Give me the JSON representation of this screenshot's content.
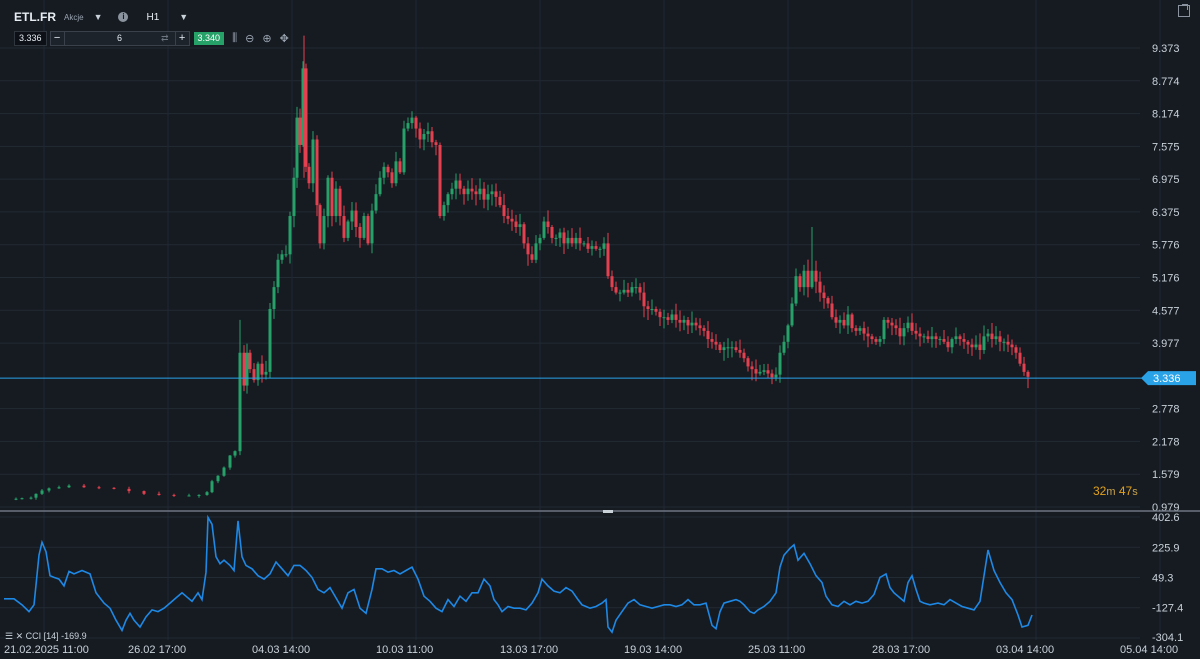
{
  "header": {
    "symbol": "ETL.FR",
    "instrument_type": "Akcje",
    "timeframe": "H1",
    "info_icon": "info-icon",
    "dropdown_icon": "chevron-down-icon"
  },
  "trade_bar": {
    "bid": "3.336",
    "minus": "−",
    "volume": "6",
    "plus": "+",
    "ask": "3.340"
  },
  "tools": [
    "candle-type-icon",
    "zoom-out-icon",
    "zoom-in-icon",
    "move-icon"
  ],
  "current_price": "3.336",
  "candle_timer": {
    "m": "32",
    "m_unit": "m",
    "s": "47",
    "s_unit": "s"
  },
  "indicator_label": "CCI [14] -169.9",
  "colors": {
    "up": "#26a269",
    "down": "#e5404f",
    "price_line": "#2aa2e8",
    "cci": "#1e88e5"
  },
  "chart_data": {
    "type": "candlestick",
    "y_ticks": [
      "9.373",
      "8.774",
      "8.174",
      "7.575",
      "6.975",
      "6.375",
      "5.776",
      "5.176",
      "4.577",
      "3.977",
      "2.778",
      "2.178",
      "1.579",
      "0.979"
    ],
    "y_range": [
      0.979,
      9.373
    ],
    "x_ticks": [
      "21.02.2025 11:00",
      "26.02 17:00",
      "04.03 14:00",
      "10.03 11:00",
      "13.03 17:00",
      "19.03 14:00",
      "25.03 11:00",
      "28.03 17:00",
      "03.04 14:00",
      "05.04 14:00"
    ],
    "close_path": [
      [
        0,
        1.13
      ],
      [
        12,
        1.13
      ],
      [
        18,
        1.14
      ],
      [
        27,
        1.15
      ],
      [
        32,
        1.22
      ],
      [
        38,
        1.28
      ],
      [
        45,
        1.32
      ],
      [
        55,
        1.34
      ],
      [
        65,
        1.37
      ],
      [
        80,
        1.34
      ],
      [
        95,
        1.33
      ],
      [
        110,
        1.31
      ],
      [
        125,
        1.27
      ],
      [
        140,
        1.22
      ],
      [
        155,
        1.2
      ],
      [
        170,
        1.19
      ],
      [
        185,
        1.19
      ],
      [
        195,
        1.2
      ],
      [
        203,
        1.25
      ],
      [
        208,
        1.45
      ],
      [
        214,
        1.55
      ],
      [
        220,
        1.7
      ],
      [
        226,
        1.92
      ],
      [
        231,
        2.0
      ],
      [
        236,
        3.8
      ],
      [
        240,
        3.2
      ],
      [
        243,
        3.8
      ],
      [
        246,
        3.5
      ],
      [
        250,
        3.3
      ],
      [
        254,
        3.6
      ],
      [
        258,
        3.4
      ],
      [
        262,
        3.45
      ],
      [
        266,
        4.6
      ],
      [
        270,
        5.0
      ],
      [
        274,
        5.5
      ],
      [
        278,
        5.6
      ],
      [
        282,
        5.6
      ],
      [
        286,
        6.3
      ],
      [
        290,
        7.0
      ],
      [
        293,
        8.1
      ],
      [
        296,
        7.6
      ],
      [
        299,
        9.0
      ],
      [
        302,
        7.2
      ],
      [
        305,
        6.9
      ],
      [
        309,
        7.7
      ],
      [
        313,
        6.5
      ],
      [
        316,
        5.8
      ],
      [
        320,
        6.3
      ],
      [
        324,
        7.0
      ],
      [
        328,
        6.3
      ],
      [
        332,
        6.8
      ],
      [
        336,
        6.3
      ],
      [
        340,
        5.9
      ],
      [
        344,
        6.2
      ],
      [
        348,
        6.4
      ],
      [
        352,
        6.1
      ],
      [
        356,
        5.9
      ],
      [
        360,
        6.3
      ],
      [
        364,
        5.8
      ],
      [
        368,
        6.4
      ],
      [
        372,
        6.7
      ],
      [
        376,
        7.0
      ],
      [
        380,
        7.2
      ],
      [
        384,
        7.1
      ],
      [
        388,
        6.9
      ],
      [
        392,
        7.3
      ],
      [
        396,
        7.1
      ],
      [
        400,
        7.9
      ],
      [
        404,
        8.0
      ],
      [
        408,
        8.1
      ],
      [
        412,
        7.9
      ],
      [
        416,
        7.7
      ],
      [
        420,
        7.8
      ],
      [
        424,
        7.85
      ],
      [
        428,
        7.65
      ],
      [
        432,
        7.6
      ],
      [
        436,
        6.3
      ],
      [
        440,
        6.5
      ],
      [
        444,
        6.7
      ],
      [
        448,
        6.8
      ],
      [
        452,
        6.95
      ],
      [
        456,
        6.8
      ],
      [
        460,
        6.7
      ],
      [
        464,
        6.8
      ],
      [
        468,
        6.75
      ],
      [
        472,
        6.7
      ],
      [
        476,
        6.8
      ],
      [
        480,
        6.6
      ],
      [
        484,
        6.7
      ],
      [
        488,
        6.75
      ],
      [
        492,
        6.65
      ],
      [
        496,
        6.5
      ],
      [
        500,
        6.3
      ],
      [
        504,
        6.25
      ],
      [
        508,
        6.2
      ],
      [
        512,
        6.1
      ],
      [
        516,
        6.15
      ],
      [
        520,
        5.8
      ],
      [
        524,
        5.6
      ],
      [
        528,
        5.5
      ],
      [
        532,
        5.8
      ],
      [
        536,
        5.9
      ],
      [
        540,
        6.2
      ],
      [
        544,
        6.1
      ],
      [
        548,
        5.9
      ],
      [
        552,
        5.9
      ],
      [
        556,
        6.0
      ],
      [
        560,
        5.8
      ],
      [
        564,
        5.9
      ],
      [
        568,
        5.8
      ],
      [
        572,
        5.9
      ],
      [
        576,
        5.8
      ],
      [
        580,
        5.8
      ],
      [
        584,
        5.7
      ],
      [
        588,
        5.75
      ],
      [
        592,
        5.7
      ],
      [
        596,
        5.7
      ],
      [
        600,
        5.8
      ],
      [
        604,
        5.2
      ],
      [
        608,
        5.0
      ],
      [
        612,
        4.9
      ],
      [
        616,
        4.9
      ],
      [
        620,
        4.95
      ],
      [
        624,
        4.9
      ],
      [
        628,
        5.0
      ],
      [
        632,
        5.0
      ],
      [
        636,
        4.9
      ],
      [
        640,
        4.65
      ],
      [
        644,
        4.6
      ],
      [
        648,
        4.6
      ],
      [
        652,
        4.55
      ],
      [
        656,
        4.45
      ],
      [
        660,
        4.45
      ],
      [
        664,
        4.4
      ],
      [
        668,
        4.5
      ],
      [
        672,
        4.4
      ],
      [
        676,
        4.35
      ],
      [
        680,
        4.4
      ],
      [
        684,
        4.3
      ],
      [
        688,
        4.35
      ],
      [
        692,
        4.3
      ],
      [
        696,
        4.25
      ],
      [
        700,
        4.2
      ],
      [
        704,
        4.05
      ],
      [
        708,
        4.0
      ],
      [
        712,
        3.95
      ],
      [
        716,
        3.85
      ],
      [
        720,
        3.9
      ],
      [
        724,
        3.9
      ],
      [
        728,
        3.9
      ],
      [
        732,
        3.85
      ],
      [
        736,
        3.8
      ],
      [
        740,
        3.7
      ],
      [
        744,
        3.55
      ],
      [
        748,
        3.5
      ],
      [
        752,
        3.42
      ],
      [
        756,
        3.45
      ],
      [
        760,
        3.48
      ],
      [
        764,
        3.42
      ],
      [
        768,
        3.35
      ],
      [
        772,
        3.4
      ],
      [
        776,
        3.8
      ],
      [
        780,
        4.0
      ],
      [
        784,
        4.3
      ],
      [
        788,
        4.7
      ],
      [
        792,
        5.2
      ],
      [
        796,
        5.0
      ],
      [
        800,
        5.3
      ],
      [
        804,
        5.0
      ],
      [
        808,
        5.3
      ],
      [
        812,
        5.1
      ],
      [
        816,
        4.9
      ],
      [
        820,
        4.8
      ],
      [
        824,
        4.7
      ],
      [
        828,
        4.45
      ],
      [
        832,
        4.35
      ],
      [
        836,
        4.4
      ],
      [
        840,
        4.3
      ],
      [
        844,
        4.5
      ],
      [
        848,
        4.25
      ],
      [
        852,
        4.2
      ],
      [
        856,
        4.25
      ],
      [
        860,
        4.15
      ],
      [
        864,
        4.1
      ],
      [
        868,
        4.05
      ],
      [
        872,
        4.0
      ],
      [
        876,
        4.05
      ],
      [
        880,
        4.4
      ],
      [
        884,
        4.35
      ],
      [
        888,
        4.3
      ],
      [
        892,
        4.25
      ],
      [
        896,
        4.1
      ],
      [
        900,
        4.25
      ],
      [
        904,
        4.35
      ],
      [
        908,
        4.2
      ],
      [
        912,
        4.15
      ],
      [
        916,
        4.1
      ],
      [
        920,
        4.1
      ],
      [
        924,
        4.05
      ],
      [
        928,
        4.1
      ],
      [
        932,
        4.05
      ],
      [
        936,
        4.05
      ],
      [
        940,
        4.0
      ],
      [
        944,
        3.9
      ],
      [
        948,
        4.05
      ],
      [
        952,
        4.1
      ],
      [
        956,
        4.05
      ],
      [
        960,
        4.0
      ],
      [
        964,
        3.95
      ],
      [
        968,
        3.9
      ],
      [
        972,
        3.95
      ],
      [
        976,
        3.85
      ],
      [
        980,
        4.1
      ],
      [
        984,
        4.15
      ],
      [
        988,
        4.05
      ],
      [
        992,
        4.1
      ],
      [
        996,
        4.0
      ],
      [
        1000,
        4.0
      ],
      [
        1004,
        3.95
      ],
      [
        1008,
        3.9
      ],
      [
        1012,
        3.8
      ],
      [
        1016,
        3.6
      ],
      [
        1020,
        3.45
      ],
      [
        1024,
        3.36
      ]
    ],
    "cci_ticks": [
      "402.6",
      "225.9",
      "49.3",
      "-127.4",
      "-304.1"
    ],
    "cci_range": [
      -304.1,
      402.6
    ],
    "cci_path": [
      [
        0,
        -75
      ],
      [
        10,
        -75
      ],
      [
        18,
        -110
      ],
      [
        25,
        -150
      ],
      [
        30,
        -110
      ],
      [
        35,
        180
      ],
      [
        38,
        255
      ],
      [
        42,
        200
      ],
      [
        46,
        60
      ],
      [
        50,
        50
      ],
      [
        55,
        40
      ],
      [
        60,
        0
      ],
      [
        65,
        85
      ],
      [
        70,
        70
      ],
      [
        78,
        90
      ],
      [
        86,
        70
      ],
      [
        92,
        -40
      ],
      [
        100,
        -100
      ],
      [
        106,
        -130
      ],
      [
        112,
        -200
      ],
      [
        118,
        -260
      ],
      [
        122,
        -200
      ],
      [
        126,
        -160
      ],
      [
        130,
        -200
      ],
      [
        136,
        -240
      ],
      [
        142,
        -180
      ],
      [
        148,
        -140
      ],
      [
        154,
        -150
      ],
      [
        160,
        -130
      ],
      [
        166,
        -100
      ],
      [
        172,
        -70
      ],
      [
        178,
        -40
      ],
      [
        182,
        -60
      ],
      [
        188,
        -90
      ],
      [
        194,
        -40
      ],
      [
        198,
        -80
      ],
      [
        202,
        80
      ],
      [
        204,
        400
      ],
      [
        208,
        360
      ],
      [
        212,
        170
      ],
      [
        216,
        130
      ],
      [
        220,
        150
      ],
      [
        226,
        120
      ],
      [
        230,
        90
      ],
      [
        234,
        380
      ],
      [
        238,
        170
      ],
      [
        242,
        120
      ],
      [
        248,
        100
      ],
      [
        254,
        60
      ],
      [
        260,
        40
      ],
      [
        266,
        70
      ],
      [
        272,
        140
      ],
      [
        278,
        100
      ],
      [
        284,
        60
      ],
      [
        290,
        120
      ],
      [
        296,
        120
      ],
      [
        302,
        90
      ],
      [
        308,
        50
      ],
      [
        314,
        -20
      ],
      [
        320,
        -40
      ],
      [
        326,
        -10
      ],
      [
        332,
        -70
      ],
      [
        338,
        -130
      ],
      [
        344,
        -40
      ],
      [
        350,
        -20
      ],
      [
        356,
        -130
      ],
      [
        362,
        -160
      ],
      [
        368,
        -20
      ],
      [
        372,
        100
      ],
      [
        378,
        100
      ],
      [
        384,
        80
      ],
      [
        390,
        90
      ],
      [
        396,
        70
      ],
      [
        402,
        90
      ],
      [
        408,
        110
      ],
      [
        414,
        40
      ],
      [
        420,
        -60
      ],
      [
        426,
        -90
      ],
      [
        432,
        -130
      ],
      [
        438,
        -150
      ],
      [
        444,
        -80
      ],
      [
        450,
        -120
      ],
      [
        456,
        -60
      ],
      [
        462,
        -90
      ],
      [
        468,
        -40
      ],
      [
        474,
        -40
      ],
      [
        480,
        40
      ],
      [
        486,
        0
      ],
      [
        490,
        -80
      ],
      [
        494,
        -110
      ],
      [
        498,
        -150
      ],
      [
        504,
        -120
      ],
      [
        510,
        -130
      ],
      [
        516,
        -130
      ],
      [
        522,
        -140
      ],
      [
        528,
        -100
      ],
      [
        534,
        -40
      ],
      [
        538,
        40
      ],
      [
        544,
        0
      ],
      [
        550,
        -30
      ],
      [
        556,
        -40
      ],
      [
        562,
        -10
      ],
      [
        568,
        -30
      ],
      [
        574,
        -80
      ],
      [
        578,
        -110
      ],
      [
        582,
        -120
      ],
      [
        586,
        -130
      ],
      [
        592,
        -120
      ],
      [
        598,
        -100
      ],
      [
        602,
        -80
      ],
      [
        604,
        -240
      ],
      [
        608,
        -270
      ],
      [
        612,
        -200
      ],
      [
        618,
        -150
      ],
      [
        624,
        -100
      ],
      [
        630,
        -80
      ],
      [
        636,
        -110
      ],
      [
        642,
        -120
      ],
      [
        648,
        -130
      ],
      [
        654,
        -120
      ],
      [
        660,
        -110
      ],
      [
        666,
        -110
      ],
      [
        672,
        -120
      ],
      [
        678,
        -110
      ],
      [
        684,
        -80
      ],
      [
        690,
        -110
      ],
      [
        696,
        -110
      ],
      [
        702,
        -100
      ],
      [
        708,
        -230
      ],
      [
        712,
        -250
      ],
      [
        716,
        -150
      ],
      [
        720,
        -100
      ],
      [
        726,
        -90
      ],
      [
        732,
        -80
      ],
      [
        736,
        -90
      ],
      [
        740,
        -110
      ],
      [
        746,
        -150
      ],
      [
        750,
        -160
      ],
      [
        754,
        -140
      ],
      [
        760,
        -120
      ],
      [
        766,
        -90
      ],
      [
        772,
        -40
      ],
      [
        776,
        110
      ],
      [
        780,
        180
      ],
      [
        786,
        220
      ],
      [
        790,
        240
      ],
      [
        794,
        150
      ],
      [
        800,
        190
      ],
      [
        806,
        130
      ],
      [
        812,
        60
      ],
      [
        818,
        20
      ],
      [
        822,
        -60
      ],
      [
        828,
        -110
      ],
      [
        834,
        -120
      ],
      [
        840,
        -90
      ],
      [
        846,
        -110
      ],
      [
        852,
        -90
      ],
      [
        858,
        -100
      ],
      [
        864,
        -90
      ],
      [
        870,
        -50
      ],
      [
        876,
        50
      ],
      [
        882,
        70
      ],
      [
        886,
        -10
      ],
      [
        890,
        -40
      ],
      [
        896,
        -70
      ],
      [
        900,
        -90
      ],
      [
        904,
        20
      ],
      [
        908,
        60
      ],
      [
        912,
        -20
      ],
      [
        916,
        -90
      ],
      [
        920,
        -100
      ],
      [
        926,
        -110
      ],
      [
        934,
        -100
      ],
      [
        940,
        -110
      ],
      [
        946,
        -80
      ],
      [
        952,
        -100
      ],
      [
        958,
        -120
      ],
      [
        964,
        -130
      ],
      [
        970,
        -140
      ],
      [
        976,
        -90
      ],
      [
        980,
        60
      ],
      [
        984,
        210
      ],
      [
        990,
        90
      ],
      [
        996,
        20
      ],
      [
        1002,
        -40
      ],
      [
        1008,
        -80
      ],
      [
        1014,
        -170
      ],
      [
        1018,
        -240
      ],
      [
        1024,
        -230
      ],
      [
        1028,
        -170
      ]
    ]
  }
}
